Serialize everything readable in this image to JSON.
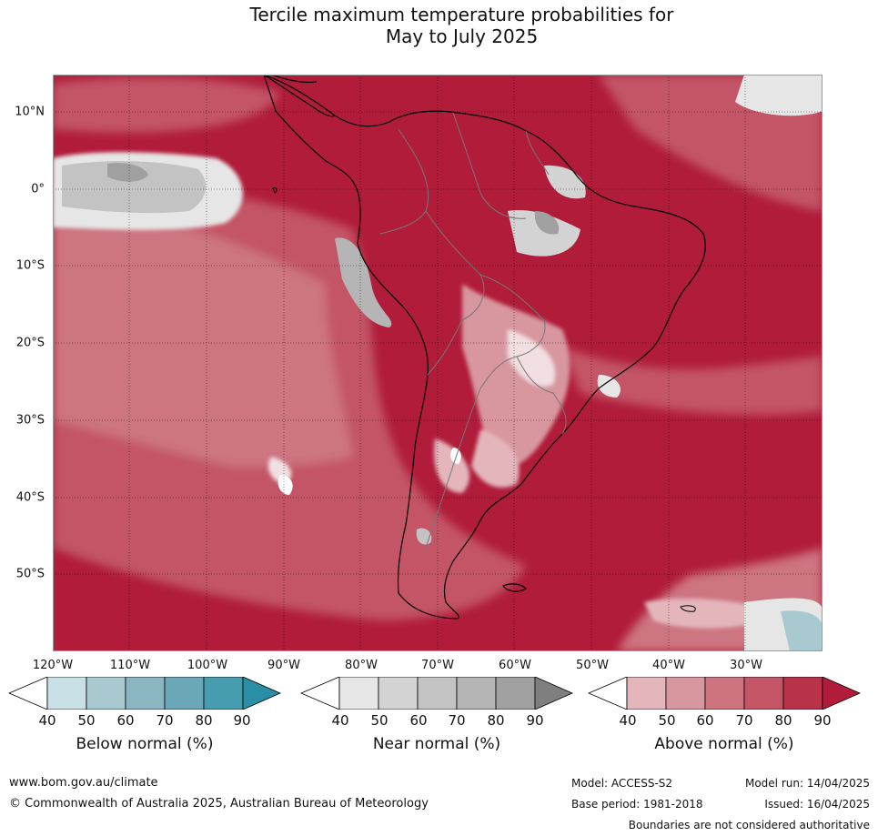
{
  "title_line1": "Tercile maximum temperature probabilities for",
  "title_line2": "May to July 2025",
  "lat_labels": [
    "10°N",
    "0°",
    "10°S",
    "20°S",
    "30°S",
    "40°S",
    "50°S"
  ],
  "lon_labels": [
    "120°W",
    "110°W",
    "100°W",
    "90°W",
    "80°W",
    "70°W",
    "60°W",
    "50°W",
    "40°W",
    "30°W"
  ],
  "colorbars": [
    {
      "title": "Below normal (%)",
      "ticks": [
        "40",
        "50",
        "60",
        "70",
        "80",
        "90"
      ],
      "colors": [
        "#ffffff",
        "#c9e1e6",
        "#a8c9d0",
        "#8ab6c1",
        "#6aa8b7",
        "#469db0",
        "#2a8ea5"
      ]
    },
    {
      "title": "Near normal (%)",
      "ticks": [
        "40",
        "50",
        "60",
        "70",
        "80",
        "90"
      ],
      "colors": [
        "#ffffff",
        "#e6e6e6",
        "#d3d3d3",
        "#c3c3c3",
        "#b5b5b5",
        "#a0a0a0",
        "#7f7f7f"
      ]
    },
    {
      "title": "Above normal (%)",
      "ticks": [
        "40",
        "50",
        "60",
        "70",
        "80",
        "90"
      ],
      "colors": [
        "#ffffff",
        "#e4b6bc",
        "#d8969e",
        "#cd7480",
        "#c35566",
        "#b8334a",
        "#b01c3a"
      ]
    }
  ],
  "footer": {
    "website": "www.bom.gov.au/climate",
    "copyright": "© Commonwealth of Australia 2025, Australian Bureau of Meteorology",
    "model": "Model: ACCESS-S2",
    "base_period": "Base period: 1981-2018",
    "model_run": "Model run: 14/04/2025",
    "issued": "Issued: 16/04/2025",
    "disclaimer": "Boundaries are not considered authoritative"
  }
}
